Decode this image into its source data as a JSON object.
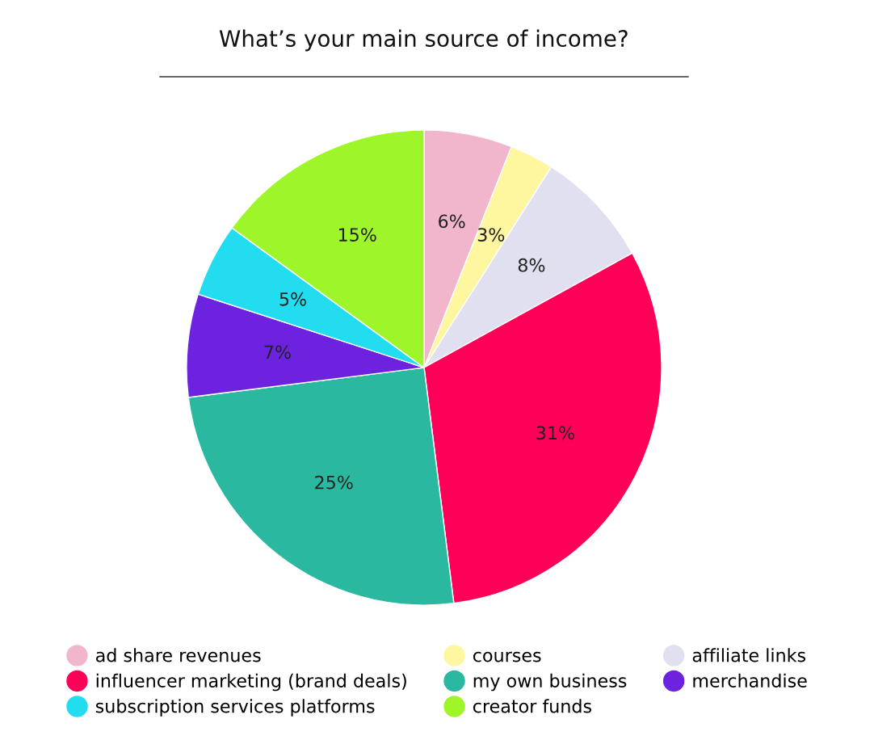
{
  "chart_data": {
    "type": "pie",
    "title": "What’s your main source of income?",
    "categories": [
      "ad share revenues",
      "courses",
      "affiliate links",
      "influencer marketing (brand deals)",
      "my own business",
      "merchandise",
      "subscription services platforms",
      "creator funds"
    ],
    "values": [
      6,
      3,
      8,
      31,
      25,
      7,
      5,
      15
    ],
    "colors": [
      "#f2b6cc",
      "#fff7a0",
      "#e0e0f0",
      "#ff0059",
      "#2ab9a0",
      "#6c22de",
      "#22dcef",
      "#9ef52a"
    ],
    "value_labels": [
      "6%",
      "3%",
      "8%",
      "31%",
      "25%",
      "7%",
      "5%",
      "15%"
    ],
    "legend": "bottom"
  }
}
